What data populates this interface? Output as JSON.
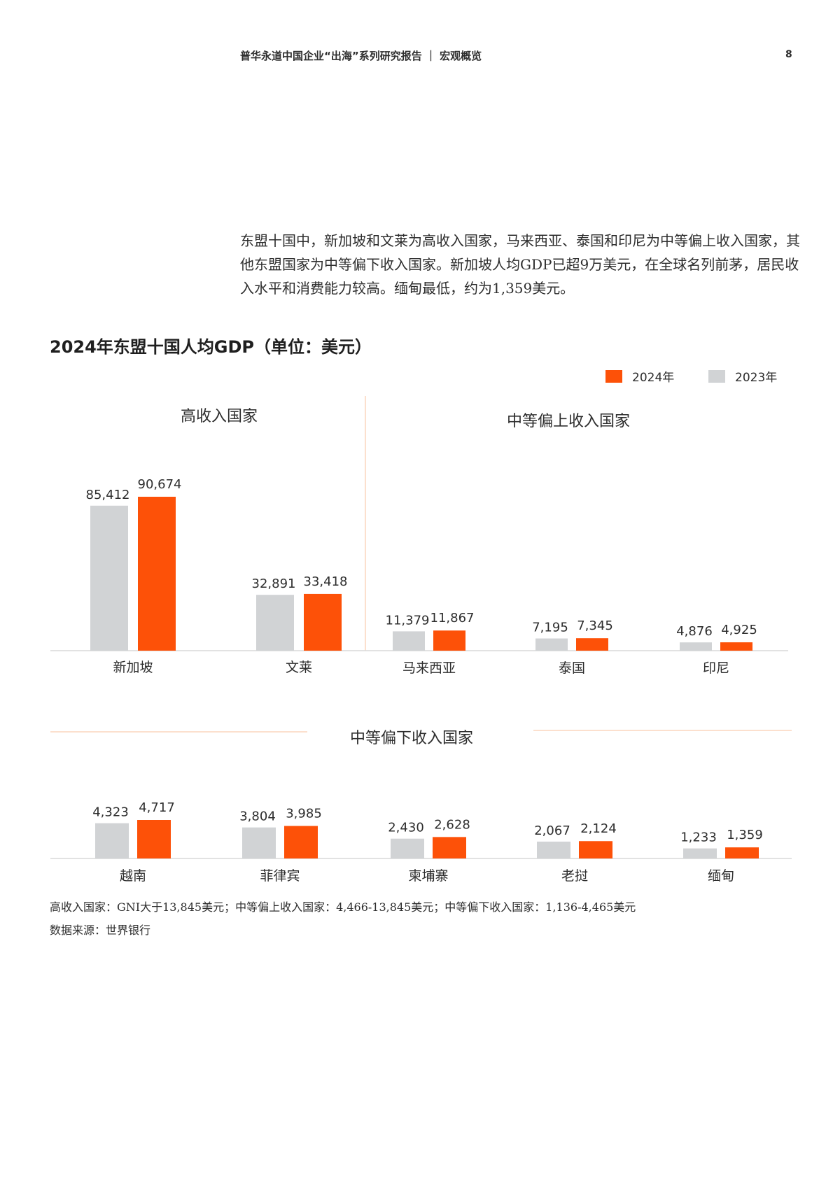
{
  "header": {
    "title": "普华永道中国企业“出海”系列研究报告 ｜ 宏观概览",
    "page_number": "8"
  },
  "intro": {
    "text": "东盟十国中，新加坡和文莱为高收入国家，马来西亚、泰国和印尼为中等偏上收入国家，其他东盟国家为中等偏下收入国家。新加坡人均GDP已超9万美元，在全球名列前茅，居民收入水平和消费能力较高。缅甸最低，约为1,359美元。"
  },
  "chart_data": {
    "type": "bar",
    "title": "2024年东盟十国人均GDP（单位：美元）",
    "unit": "美元",
    "colors": {
      "2024年": "#fd5108",
      "2023年": "#d1d3d5"
    },
    "legend": {
      "placement": "top-right",
      "items": [
        "2024年",
        "2023年"
      ]
    },
    "groups": [
      {
        "name": "高收入国家",
        "categories": [
          "新加坡",
          "文莱"
        ],
        "series": [
          {
            "name": "2023年",
            "values": [
              85412,
              32891
            ],
            "labels": [
              "85,412",
              "32,891"
            ]
          },
          {
            "name": "2024年",
            "values": [
              90674,
              33418
            ],
            "labels": [
              "90,674",
              "33,418"
            ]
          }
        ]
      },
      {
        "name": "中等偏上收入国家",
        "categories": [
          "马来西亚",
          "泰国",
          "印尼"
        ],
        "series": [
          {
            "name": "2023年",
            "values": [
              11379,
              7195,
              4876
            ],
            "labels": [
              "11,379",
              "7,195",
              "4,876"
            ]
          },
          {
            "name": "2024年",
            "values": [
              11867,
              7345,
              4925
            ],
            "labels": [
              "11,867",
              "7,345",
              "4,925"
            ]
          }
        ]
      },
      {
        "name": "中等偏下收入国家",
        "categories": [
          "越南",
          "菲律宾",
          "柬埔寨",
          "老挝",
          "缅甸"
        ],
        "series": [
          {
            "name": "2023年",
            "values": [
              4323,
              3804,
              2430,
              2067,
              1233
            ],
            "labels": [
              "4,323",
              "3,804",
              "2,430",
              "2,067",
              "1,233"
            ]
          },
          {
            "name": "2024年",
            "values": [
              4717,
              3985,
              2628,
              2124,
              1359
            ],
            "labels": [
              "4,717",
              "3,985",
              "2,628",
              "2,124",
              "1,359"
            ]
          }
        ]
      }
    ]
  },
  "footnotes": {
    "definition": "高收入国家：GNI大于13,845美元；中等偏上收入国家：4,466-13,845美元；中等偏下收入国家：1,136-4,465美元",
    "source": "数据来源：世界银行"
  }
}
